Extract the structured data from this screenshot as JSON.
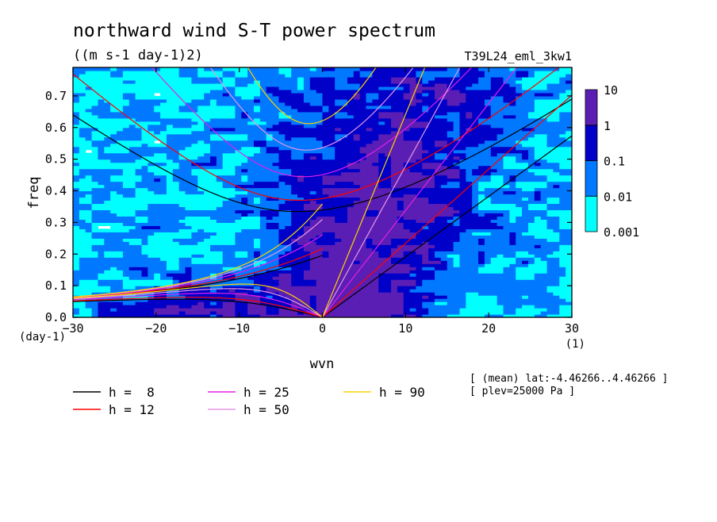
{
  "chart_data": {
    "type": "heatmap",
    "title": "northward wind S-T power spectrum",
    "units": "((m s-1 day-1)2)",
    "experiment": "T39L24_eml_3kw1",
    "xlabel": "wvn",
    "ylabel": "freq",
    "xunit": "(1)",
    "yunit": "(day-1)",
    "xlim": [
      -30,
      30
    ],
    "ylim": [
      0,
      0.79
    ],
    "xticks": [
      -30,
      -20,
      -10,
      0,
      10,
      20,
      30
    ],
    "yticks": [
      0.0,
      0.1,
      0.2,
      0.3,
      0.4,
      0.5,
      0.6,
      0.7
    ],
    "colorbar": {
      "levels": [
        "0.001",
        "0.01",
        "0.1",
        "1",
        "10"
      ],
      "colors": [
        "#00ffff",
        "#0078ff",
        "#0000c8",
        "#5a1eb4"
      ]
    },
    "dispersion_curves": [
      {
        "label": "h =  8",
        "h": 8,
        "color": "#000000"
      },
      {
        "label": "h = 12",
        "h": 12,
        "color": "#ff0000"
      },
      {
        "label": "h = 25",
        "h": 25,
        "color": "#e61ee6"
      },
      {
        "label": "h = 50",
        "h": 50,
        "color": "#e696e6"
      },
      {
        "label": "h = 90",
        "h": 90,
        "color": "#ffd200"
      }
    ],
    "annotations": [
      "[ (mean) lat:-4.46266..4.46266 ]",
      "[ plev=25000 Pa ]"
    ]
  }
}
